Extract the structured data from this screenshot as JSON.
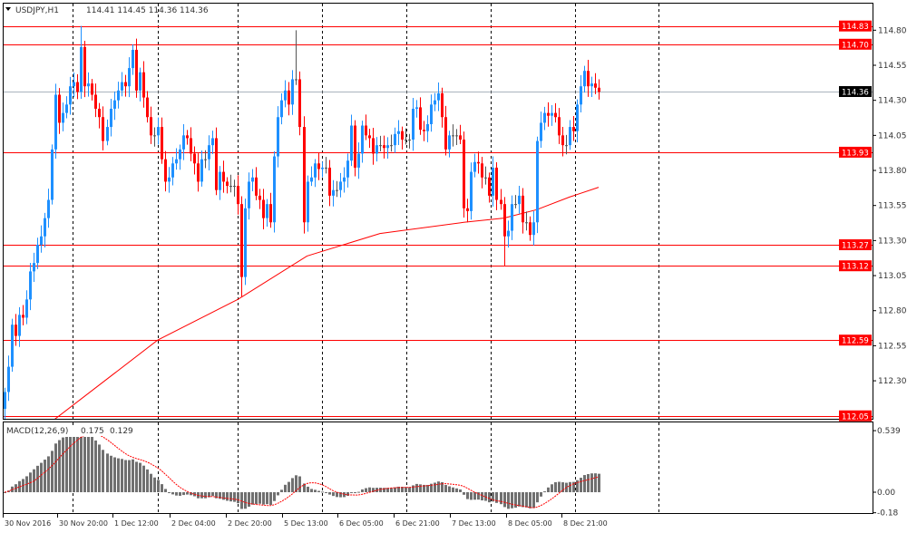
{
  "header": {
    "symbol": "USDJPY,H1",
    "ohlc_text": "114.41 114.45 114.36 114.36"
  },
  "colors": {
    "bull": "#1e90ff",
    "bear": "#ff0000",
    "level_line": "#ff0000",
    "bid_line": "#a9b4be",
    "ma_line": "#ff0000",
    "macd_histogram": "#707070",
    "macd_signal": "#ff0000"
  },
  "chart_data": [
    {
      "type": "candlestick",
      "symbol": "USDJPY",
      "timeframe": "H1",
      "ylim": [
        112.0,
        114.9
      ],
      "y_ticks": [
        "114.80",
        "114.55",
        "114.30",
        "114.05",
        "113.80",
        "113.55",
        "113.30",
        "113.05",
        "112.80",
        "112.55",
        "112.30"
      ],
      "x_tick_labels": [
        "30 Nov 2016",
        "30 Nov 20:00",
        "1 Dec 12:00",
        "2 Dec 04:00",
        "2 Dec 20:00",
        "5 Dec 13:00",
        "6 Dec 05:00",
        "6 Dec 21:00",
        "7 Dec 13:00",
        "8 Dec 05:00",
        "8 Dec 21:00"
      ],
      "first_open": 112.1,
      "close": [
        112.22,
        112.4,
        112.7,
        112.62,
        112.77,
        112.75,
        112.88,
        113.08,
        113.14,
        113.27,
        113.33,
        113.46,
        113.59,
        113.95,
        114.34,
        114.14,
        114.21,
        114.27,
        114.4,
        114.43,
        114.36,
        114.68,
        114.4,
        114.42,
        114.34,
        114.24,
        114.18,
        114.01,
        114.11,
        114.24,
        114.3,
        114.37,
        114.43,
        114.4,
        114.53,
        114.66,
        114.37,
        114.5,
        114.32,
        114.18,
        114.05,
        114.05,
        114.11,
        113.88,
        113.72,
        113.75,
        113.85,
        113.88,
        113.95,
        114.05,
        114.03,
        113.92,
        113.85,
        113.72,
        113.88,
        113.88,
        113.98,
        114.03,
        113.66,
        113.79,
        113.72,
        113.69,
        113.69,
        113.69,
        113.56,
        113.04,
        113.53,
        113.72,
        113.75,
        113.62,
        113.59,
        113.46,
        113.56,
        113.43,
        113.9,
        114.18,
        114.3,
        114.37,
        114.27,
        114.45,
        114.45,
        114.11,
        113.43,
        113.72,
        113.75,
        113.85,
        113.81,
        113.82,
        113.82,
        113.62,
        113.66,
        113.66,
        113.72,
        113.75,
        113.87,
        114.12,
        113.82,
        113.92,
        114.12,
        114.05,
        114.03,
        113.92,
        113.98,
        113.98,
        113.96,
        113.98,
        113.98,
        114.06,
        114.08,
        114.02,
        114.02,
        114.02,
        114.24,
        114.25,
        114.09,
        114.08,
        114.13,
        114.27,
        114.3,
        114.35,
        114.18,
        113.95,
        114.05,
        114.05,
        114.05,
        114.02,
        113.53,
        113.51,
        113.79,
        113.86,
        113.85,
        113.75,
        113.75,
        113.62,
        113.82,
        113.59,
        113.56,
        113.33,
        113.37,
        113.56,
        113.56,
        113.62,
        113.43,
        113.43,
        113.34,
        113.43,
        114.01,
        114.14,
        114.21,
        114.19,
        114.21,
        114.18,
        114.05,
        113.98,
        113.98,
        114.11,
        114.08,
        114.27,
        114.4,
        114.51,
        114.4,
        114.42,
        114.39,
        114.36
      ],
      "notable_extremes": [
        {
          "bar": 21,
          "high": 114.83
        },
        {
          "bar": 65,
          "low": 112.9
        },
        {
          "bar": 80,
          "high": 114.8
        },
        {
          "bar": 137,
          "low": 113.12
        }
      ],
      "moving_average": [
        [
          13,
          112.01
        ],
        [
          42,
          112.59
        ],
        [
          64,
          112.88
        ],
        [
          83,
          113.19
        ],
        [
          103,
          113.35
        ],
        [
          126,
          113.43
        ],
        [
          137,
          113.46
        ],
        [
          146,
          113.52
        ],
        [
          155,
          113.61
        ],
        [
          163,
          113.68
        ]
      ],
      "horizontal_levels": [
        "114.83",
        "114.70",
        "113.93",
        "113.27",
        "113.12",
        "112.59",
        "112.05"
      ],
      "current_price": "114.36"
    },
    {
      "type": "bar",
      "indicator": "MACD",
      "label": "MACD(12,26,9)",
      "params": {
        "fast": 12,
        "slow": 26,
        "signal": 9
      },
      "current_values": [
        "0.175",
        "0.129"
      ],
      "y_ticks": [
        "0.539",
        "0.00",
        "-0.18"
      ],
      "ylim": [
        -0.18,
        0.539
      ]
    }
  ]
}
